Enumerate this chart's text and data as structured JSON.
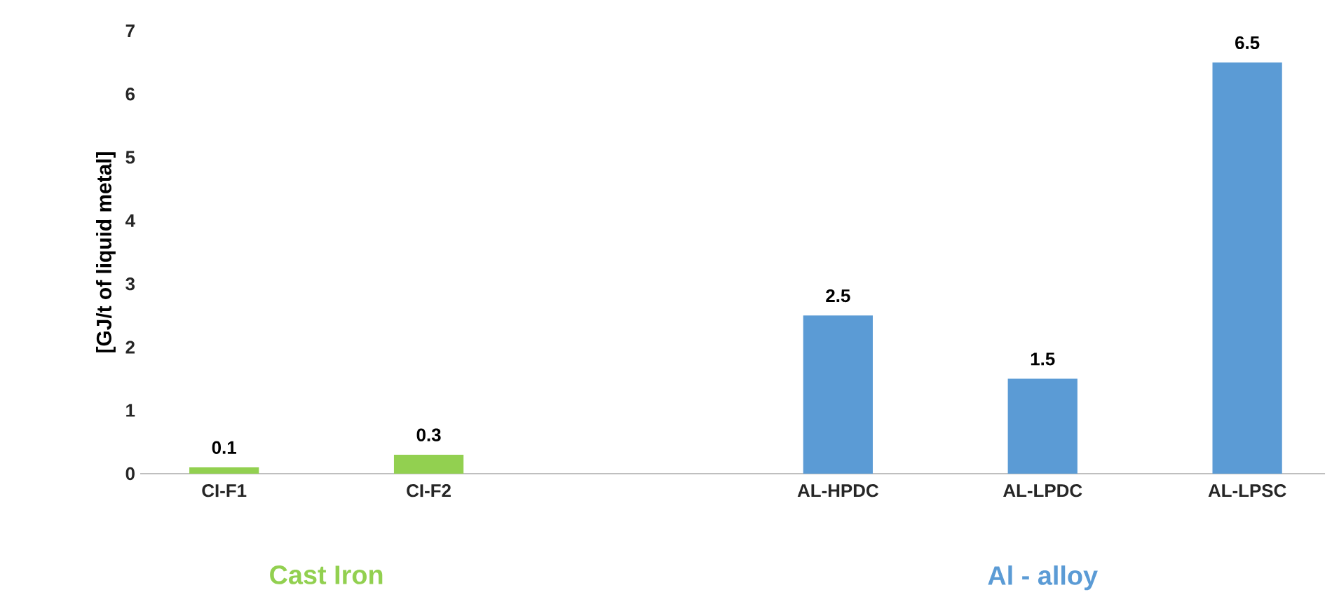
{
  "chart_data": {
    "type": "bar",
    "ylabel": "[GJ/t of liquid metal]",
    "categories": [
      "CI-F1",
      "CI-F2",
      null,
      "AL-HPDC",
      "AL-LPDC",
      "AL-LPSC"
    ],
    "series": [
      {
        "name": "Cast Iron",
        "color": "#92d050",
        "values": [
          0.1,
          0.3,
          null,
          null,
          null,
          null
        ]
      },
      {
        "name": "Al - alloy",
        "color": "#5b9bd5",
        "values": [
          null,
          null,
          null,
          2.5,
          1.5,
          6.5
        ]
      }
    ],
    "ylim": [
      0,
      7
    ],
    "yticks": [
      0,
      1,
      2,
      3,
      4,
      5,
      6,
      7
    ],
    "data_labels": true,
    "grid": false
  }
}
